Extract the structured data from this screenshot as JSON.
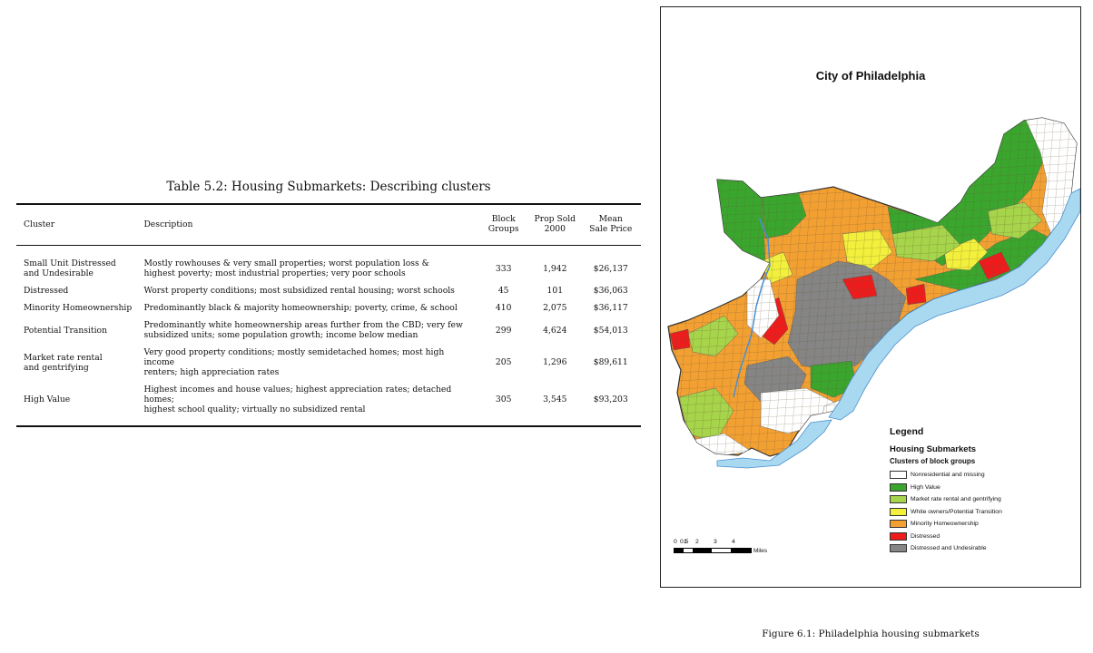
{
  "table": {
    "caption": "Table 5.2: Housing Submarkets: Describing clusters",
    "headers": {
      "cluster": "Cluster",
      "description": "Description",
      "block_groups": "Block\nGroups",
      "prop_sold": "Prop Sold\n2000",
      "mean_price": "Mean\nSale Price"
    },
    "rows": [
      {
        "cluster": "Small Unit Distressed\nand Undesirable",
        "description": "Mostly rowhouses & very small properties; worst population loss &\nhighest poverty; most industrial properties; very poor schools",
        "block_groups": "333",
        "prop_sold": "1,942",
        "mean_price": "$26,137"
      },
      {
        "cluster": "Distressed",
        "description": "Worst property conditions; most subsidized rental housing; worst schools",
        "block_groups": "45",
        "prop_sold": "101",
        "mean_price": "$36,063"
      },
      {
        "cluster": "Minority Homeownership",
        "description": "Predominantly black & majority homeownership; poverty, crime, & school",
        "block_groups": "410",
        "prop_sold": "2,075",
        "mean_price": "$36,117"
      },
      {
        "cluster": "Potential Transition",
        "description": "Predominantly white homeownership areas further from the CBD; very few\nsubsidized units; some population growth; income below median",
        "block_groups": "299",
        "prop_sold": "4,624",
        "mean_price": "$54,013"
      },
      {
        "cluster": "Market rate rental\nand gentrifying",
        "description": "Very good property conditions; mostly semidetached homes; most high income\nrenters; high appreciation rates",
        "block_groups": "205",
        "prop_sold": "1,296",
        "mean_price": "$89,611"
      },
      {
        "cluster": "High Value",
        "description": "Highest incomes and house values; highest appreciation rates; detached homes;\nhighest school quality; virtually no subsidized rental",
        "block_groups": "305",
        "prop_sold": "3,545",
        "mean_price": "$93,203"
      }
    ]
  },
  "map": {
    "title": "City of Philadelphia",
    "legend": {
      "title": "Legend",
      "subtitle": "Housing Submarkets",
      "subtitle2": "Clusters of block groups",
      "items": [
        {
          "label": "Nonresidential and missing",
          "color": "#ffffff"
        },
        {
          "label": "High Value",
          "color": "#3aa62e"
        },
        {
          "label": "Market rate rental and gentrifying",
          "color": "#a6d44a"
        },
        {
          "label": "White owners/Potential Transition",
          "color": "#f2f03c"
        },
        {
          "label": "Minority Homeownership",
          "color": "#f3a033"
        },
        {
          "label": "Distressed",
          "color": "#ee1c1c"
        },
        {
          "label": "Distressed and Undesirable",
          "color": "#858585"
        }
      ]
    },
    "scalebar": {
      "ticks": [
        "0",
        "0.5",
        "1",
        "2",
        "3",
        "4"
      ],
      "unit": "Miles"
    },
    "river_color": "#a9d9f0"
  },
  "figure_caption": "Figure 6.1: Philadelphia housing submarkets"
}
